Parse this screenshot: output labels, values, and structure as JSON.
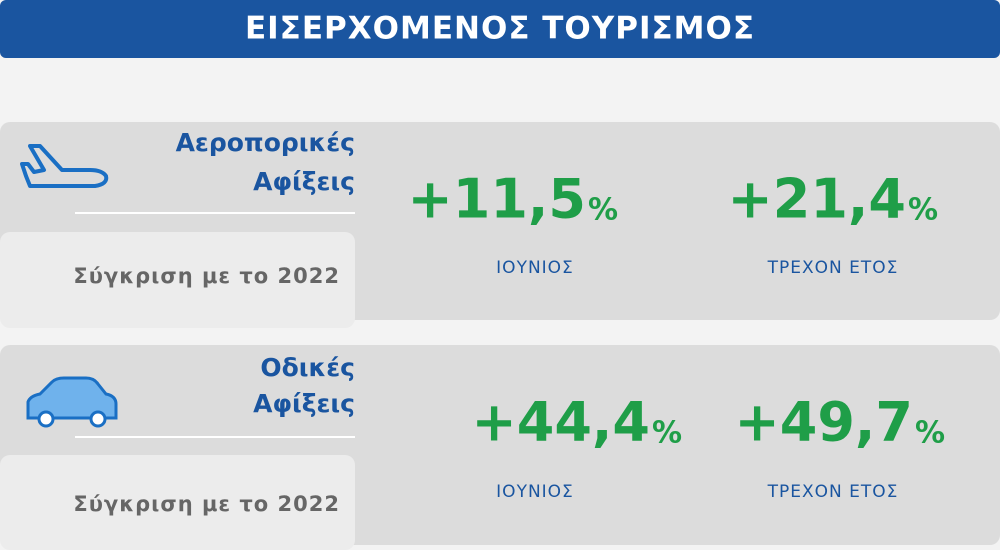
{
  "header": {
    "title": "ΕΙΣΕΡΧΟΜΕΝΟΣ ΤΟΥΡΙΣΜΟΣ"
  },
  "sections": [
    {
      "label_lines": [
        "Αεροπορικές",
        "Αφίξεις"
      ],
      "comparison": "Σύγκριση με το 2022",
      "stats": [
        {
          "value": "+11,5",
          "unit": "%",
          "label": "ΙΟΥΝΙΟΣ"
        },
        {
          "value": "+21,4",
          "unit": "%",
          "label": "ΤΡΕΧΟΝ ΕΤΟΣ"
        }
      ]
    },
    {
      "label_lines": [
        "Οδικές",
        "Αφίξεις"
      ],
      "comparison": "Σύγκριση με το 2022",
      "stats": [
        {
          "value": "+44,4",
          "unit": "%",
          "label": "ΙΟΥΝΙΟΣ"
        },
        {
          "value": "+49,7",
          "unit": "%",
          "label": "ΤΡΕΧΟΝ ΕΤΟΣ"
        }
      ]
    }
  ]
}
